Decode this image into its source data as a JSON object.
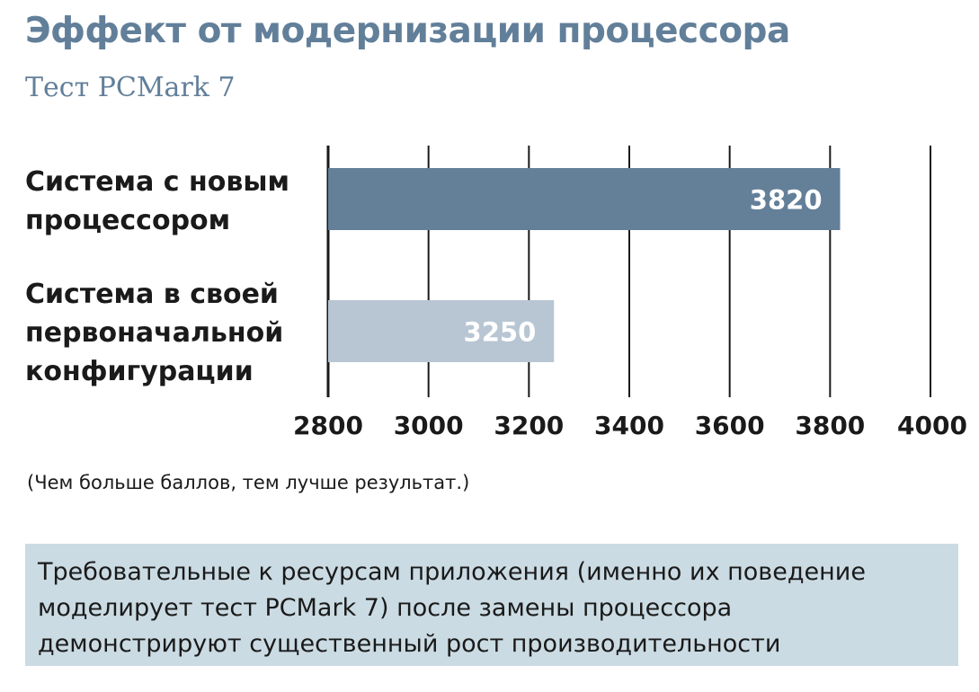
{
  "header": {
    "title": "Эффект от модернизации процессора",
    "subtitle": "Тест PCMark 7"
  },
  "colors": {
    "title": "#627f9a",
    "subtitle": "#627f9a",
    "bar_new": "#647f98",
    "bar_original": "#b8c6d3",
    "infobox_bg": "#cbdbe3",
    "gridline": "#1a1a1a",
    "text": "#1a1a1a"
  },
  "chart_data": {
    "type": "bar",
    "orientation": "horizontal",
    "categories": [
      [
        "Система с новым",
        "процессором"
      ],
      [
        "Система в своей",
        "первоначальной",
        "конфигурации"
      ]
    ],
    "values": [
      3820,
      3250
    ],
    "data_labels": [
      "3820",
      "3250"
    ],
    "xlim": [
      2800,
      4000
    ],
    "ticks": [
      2800,
      3000,
      3200,
      3400,
      3600,
      3800,
      4000
    ],
    "tick_labels": [
      "2800",
      "3000",
      "3200",
      "3400",
      "3600",
      "3800",
      "4000"
    ],
    "grid": true
  },
  "note": "(Чем больше баллов, тем лучше результат.)",
  "infobox": {
    "text": "Требовательные к ресурсам приложения (именно их поведение\nмоделирует тест PCMark 7) после замены процессора\nдемонстрируют существенный рост производительности"
  }
}
